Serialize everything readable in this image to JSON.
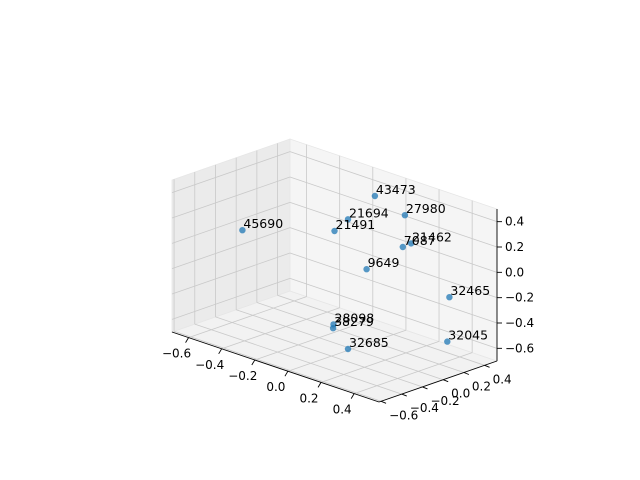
{
  "chart_data": {
    "type": "scatter",
    "projection": "3d",
    "title": "",
    "xlabel": "",
    "ylabel": "",
    "zlabel": "",
    "xlim": [
      -0.7,
      0.55
    ],
    "ylim": [
      -0.62,
      0.52
    ],
    "zlim": [
      -0.7,
      0.5
    ],
    "xticks": [
      "−0.6",
      "−0.4",
      "−0.2",
      "0.0",
      "0.2",
      "0.4"
    ],
    "yticks": [
      "−0.6",
      "−0.4",
      "−0.2",
      "0.0",
      "0.2",
      "0.4"
    ],
    "zticks": [
      "−0.6",
      "−0.4",
      "−0.2",
      "0.0",
      "0.2",
      "0.4"
    ],
    "grid": true,
    "marker_color": "#1f77b4",
    "points": [
      {
        "label": "43473",
        "x": -0.05,
        "y": 0.3,
        "z": 0.4
      },
      {
        "label": "27980",
        "x": 0.1,
        "y": 0.35,
        "z": 0.3
      },
      {
        "label": "21694",
        "x": -0.15,
        "y": 0.2,
        "z": 0.2
      },
      {
        "label": "21462",
        "x": 0.2,
        "y": 0.25,
        "z": 0.15
      },
      {
        "label": "7087",
        "x": 0.15,
        "y": 0.25,
        "z": 0.1
      },
      {
        "label": "21491",
        "x": -0.2,
        "y": 0.15,
        "z": 0.1
      },
      {
        "label": "45690",
        "x": -0.6,
        "y": -0.1,
        "z": 0.0
      },
      {
        "label": "9649",
        "x": -0.1,
        "y": 0.3,
        "z": -0.2
      },
      {
        "label": "32465",
        "x": 0.4,
        "y": 0.3,
        "z": -0.2
      },
      {
        "label": "32045",
        "x": 0.45,
        "y": 0.2,
        "z": -0.5
      },
      {
        "label": "28098",
        "x": -0.05,
        "y": -0.1,
        "z": -0.5
      },
      {
        "label": "38279",
        "x": -0.04,
        "y": -0.12,
        "z": -0.52
      },
      {
        "label": "32685",
        "x": 0.1,
        "y": -0.2,
        "z": -0.6
      }
    ]
  }
}
